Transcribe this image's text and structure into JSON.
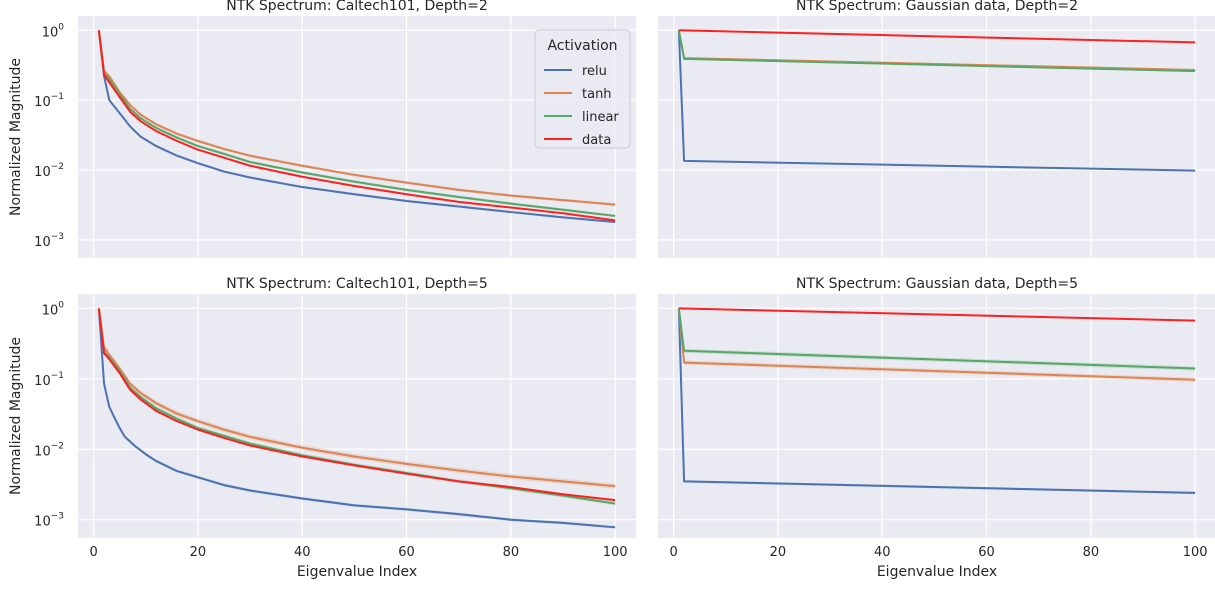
{
  "colors": {
    "relu": "#4c72b0",
    "tanh": "#dd8452",
    "linear": "#55a868",
    "data": "#ff1f1f",
    "panel_bg": "#eaeaf2",
    "grid": "#ffffff",
    "text": "#262626"
  },
  "chart_data": [
    {
      "type": "line",
      "title": "NTK Spectrum: Caltech101, Depth=2",
      "xlabel": "",
      "ylabel": "Normalized Magnitude",
      "yscale": "log",
      "xlim": [
        -3,
        104
      ],
      "ylim": [
        0.00055,
        1.6
      ],
      "xticks": [
        0,
        20,
        40,
        60,
        80,
        100
      ],
      "xtick_labels": [
        "",
        "",
        "",
        "",
        "",
        ""
      ],
      "yticks": [
        1,
        0.1,
        0.01,
        0.001
      ],
      "ytick_labels": [
        {
          "base": "10",
          "exp": "0"
        },
        {
          "base": "10",
          "exp": "−1"
        },
        {
          "base": "10",
          "exp": "−2"
        },
        {
          "base": "10",
          "exp": "−3"
        }
      ],
      "grid": true,
      "legend": {
        "title": "Activation",
        "placement": "top-right",
        "entries": [
          "relu",
          "tanh",
          "linear",
          "data"
        ]
      },
      "series": [
        {
          "name": "relu",
          "x": [
            1,
            2,
            3,
            5,
            7,
            9,
            12,
            16,
            20,
            25,
            30,
            40,
            50,
            60,
            70,
            80,
            90,
            100
          ],
          "y": [
            1,
            0.22,
            0.1,
            0.065,
            0.042,
            0.03,
            0.022,
            0.016,
            0.0125,
            0.0095,
            0.0078,
            0.0057,
            0.0045,
            0.0036,
            0.003,
            0.0025,
            0.0021,
            0.0018
          ],
          "band": 0.04
        },
        {
          "name": "tanh",
          "x": [
            1,
            2,
            3,
            5,
            7,
            9,
            12,
            16,
            20,
            25,
            30,
            40,
            50,
            60,
            70,
            80,
            90,
            100
          ],
          "y": [
            1,
            0.26,
            0.22,
            0.13,
            0.085,
            0.062,
            0.045,
            0.033,
            0.026,
            0.02,
            0.016,
            0.0115,
            0.0085,
            0.0066,
            0.0052,
            0.0043,
            0.0037,
            0.0032
          ],
          "band": 0.05
        },
        {
          "name": "linear",
          "x": [
            1,
            2,
            3,
            5,
            7,
            9,
            12,
            16,
            20,
            25,
            30,
            40,
            50,
            60,
            70,
            80,
            90,
            100
          ],
          "y": [
            1,
            0.24,
            0.2,
            0.12,
            0.075,
            0.055,
            0.04,
            0.029,
            0.022,
            0.017,
            0.013,
            0.0092,
            0.0068,
            0.0052,
            0.0041,
            0.0033,
            0.0027,
            0.0022
          ],
          "band": 0.05
        },
        {
          "name": "data",
          "x": [
            1,
            2,
            3,
            5,
            7,
            9,
            12,
            16,
            20,
            25,
            30,
            40,
            50,
            60,
            70,
            80,
            90,
            100
          ],
          "y": [
            1,
            0.23,
            0.18,
            0.11,
            0.068,
            0.05,
            0.036,
            0.026,
            0.0195,
            0.015,
            0.0115,
            0.008,
            0.0059,
            0.0045,
            0.0035,
            0.0029,
            0.0024,
            0.0019
          ],
          "band": 0.0
        }
      ]
    },
    {
      "type": "line",
      "title": "NTK Spectrum: Gaussian data, Depth=2",
      "xlabel": "",
      "ylabel": "",
      "yscale": "log",
      "xlim": [
        -3,
        104
      ],
      "ylim": [
        0.00055,
        1.6
      ],
      "xticks": [
        0,
        20,
        40,
        60,
        80,
        100
      ],
      "xtick_labels": [
        "",
        "",
        "",
        "",
        "",
        ""
      ],
      "yticks": [
        1,
        0.1,
        0.01,
        0.001
      ],
      "ytick_labels": [],
      "grid": true,
      "series": [
        {
          "name": "relu",
          "x": [
            1,
            2,
            100
          ],
          "y": [
            1,
            0.0135,
            0.0098
          ],
          "band": 0.02
        },
        {
          "name": "tanh",
          "x": [
            1,
            2,
            100
          ],
          "y": [
            1,
            0.4,
            0.27
          ],
          "band": 0.03
        },
        {
          "name": "linear",
          "x": [
            1,
            2,
            100
          ],
          "y": [
            1,
            0.39,
            0.26
          ],
          "band": 0.03
        },
        {
          "name": "data",
          "x": [
            1,
            100
          ],
          "y": [
            1,
            0.67
          ],
          "band": 0.0
        }
      ]
    },
    {
      "type": "line",
      "title": "NTK Spectrum: Caltech101, Depth=5",
      "xlabel": "Eigenvalue Index",
      "ylabel": "Normalized Magnitude",
      "yscale": "log",
      "xlim": [
        -3,
        104
      ],
      "ylim": [
        0.00055,
        1.6
      ],
      "xticks": [
        0,
        20,
        40,
        60,
        80,
        100
      ],
      "xtick_labels": [
        "0",
        "20",
        "40",
        "60",
        "80",
        "100"
      ],
      "yticks": [
        1,
        0.1,
        0.01,
        0.001
      ],
      "ytick_labels": [
        {
          "base": "10",
          "exp": "0"
        },
        {
          "base": "10",
          "exp": "−1"
        },
        {
          "base": "10",
          "exp": "−2"
        },
        {
          "base": "10",
          "exp": "−3"
        }
      ],
      "grid": true,
      "series": [
        {
          "name": "relu",
          "x": [
            1,
            2,
            3,
            4,
            5,
            6,
            8,
            10,
            12,
            16,
            20,
            25,
            30,
            40,
            50,
            60,
            70,
            80,
            90,
            100
          ],
          "y": [
            1,
            0.085,
            0.04,
            0.028,
            0.02,
            0.015,
            0.011,
            0.0085,
            0.0068,
            0.0049,
            0.004,
            0.0031,
            0.0026,
            0.002,
            0.0016,
            0.0014,
            0.0012,
            0.001,
            0.0009,
            0.00078
          ],
          "band": 0.05
        },
        {
          "name": "tanh",
          "x": [
            1,
            2,
            3,
            5,
            7,
            9,
            12,
            16,
            20,
            25,
            30,
            40,
            50,
            60,
            70,
            80,
            90,
            100
          ],
          "y": [
            1,
            0.28,
            0.22,
            0.14,
            0.085,
            0.063,
            0.045,
            0.032,
            0.025,
            0.019,
            0.015,
            0.0105,
            0.0079,
            0.0062,
            0.005,
            0.0041,
            0.0035,
            0.003
          ],
          "band": 0.09
        },
        {
          "name": "linear",
          "x": [
            1,
            2,
            3,
            5,
            7,
            9,
            12,
            16,
            20,
            25,
            30,
            40,
            50,
            60,
            70,
            80,
            90,
            100
          ],
          "y": [
            1,
            0.24,
            0.2,
            0.13,
            0.075,
            0.055,
            0.038,
            0.027,
            0.02,
            0.0155,
            0.012,
            0.0082,
            0.006,
            0.0046,
            0.0035,
            0.0028,
            0.0022,
            0.0017
          ],
          "band": 0.07
        },
        {
          "name": "data",
          "x": [
            1,
            2,
            3,
            5,
            7,
            9,
            12,
            16,
            20,
            25,
            30,
            40,
            50,
            60,
            70,
            80,
            90,
            100
          ],
          "y": [
            1,
            0.23,
            0.19,
            0.12,
            0.07,
            0.051,
            0.035,
            0.025,
            0.019,
            0.0145,
            0.0113,
            0.0079,
            0.0059,
            0.0045,
            0.0035,
            0.0029,
            0.0023,
            0.0019
          ],
          "band": 0.0
        }
      ]
    },
    {
      "type": "line",
      "title": "NTK Spectrum: Gaussian data, Depth=5",
      "xlabel": "Eigenvalue Index",
      "ylabel": "",
      "yscale": "log",
      "xlim": [
        -3,
        104
      ],
      "ylim": [
        0.00055,
        1.6
      ],
      "xticks": [
        0,
        20,
        40,
        60,
        80,
        100
      ],
      "xtick_labels": [
        "0",
        "20",
        "40",
        "60",
        "80",
        "100"
      ],
      "yticks": [
        1,
        0.1,
        0.01,
        0.001
      ],
      "ytick_labels": [],
      "grid": true,
      "series": [
        {
          "name": "relu",
          "x": [
            1,
            2,
            100
          ],
          "y": [
            1,
            0.0035,
            0.0024
          ],
          "band": 0.04
        },
        {
          "name": "tanh",
          "x": [
            1,
            2,
            100
          ],
          "y": [
            1,
            0.17,
            0.097
          ],
          "band": 0.07
        },
        {
          "name": "linear",
          "x": [
            1,
            2,
            100
          ],
          "y": [
            1,
            0.25,
            0.14
          ],
          "band": 0.07
        },
        {
          "name": "data",
          "x": [
            1,
            100
          ],
          "y": [
            1,
            0.67
          ],
          "band": 0.0
        }
      ]
    }
  ]
}
